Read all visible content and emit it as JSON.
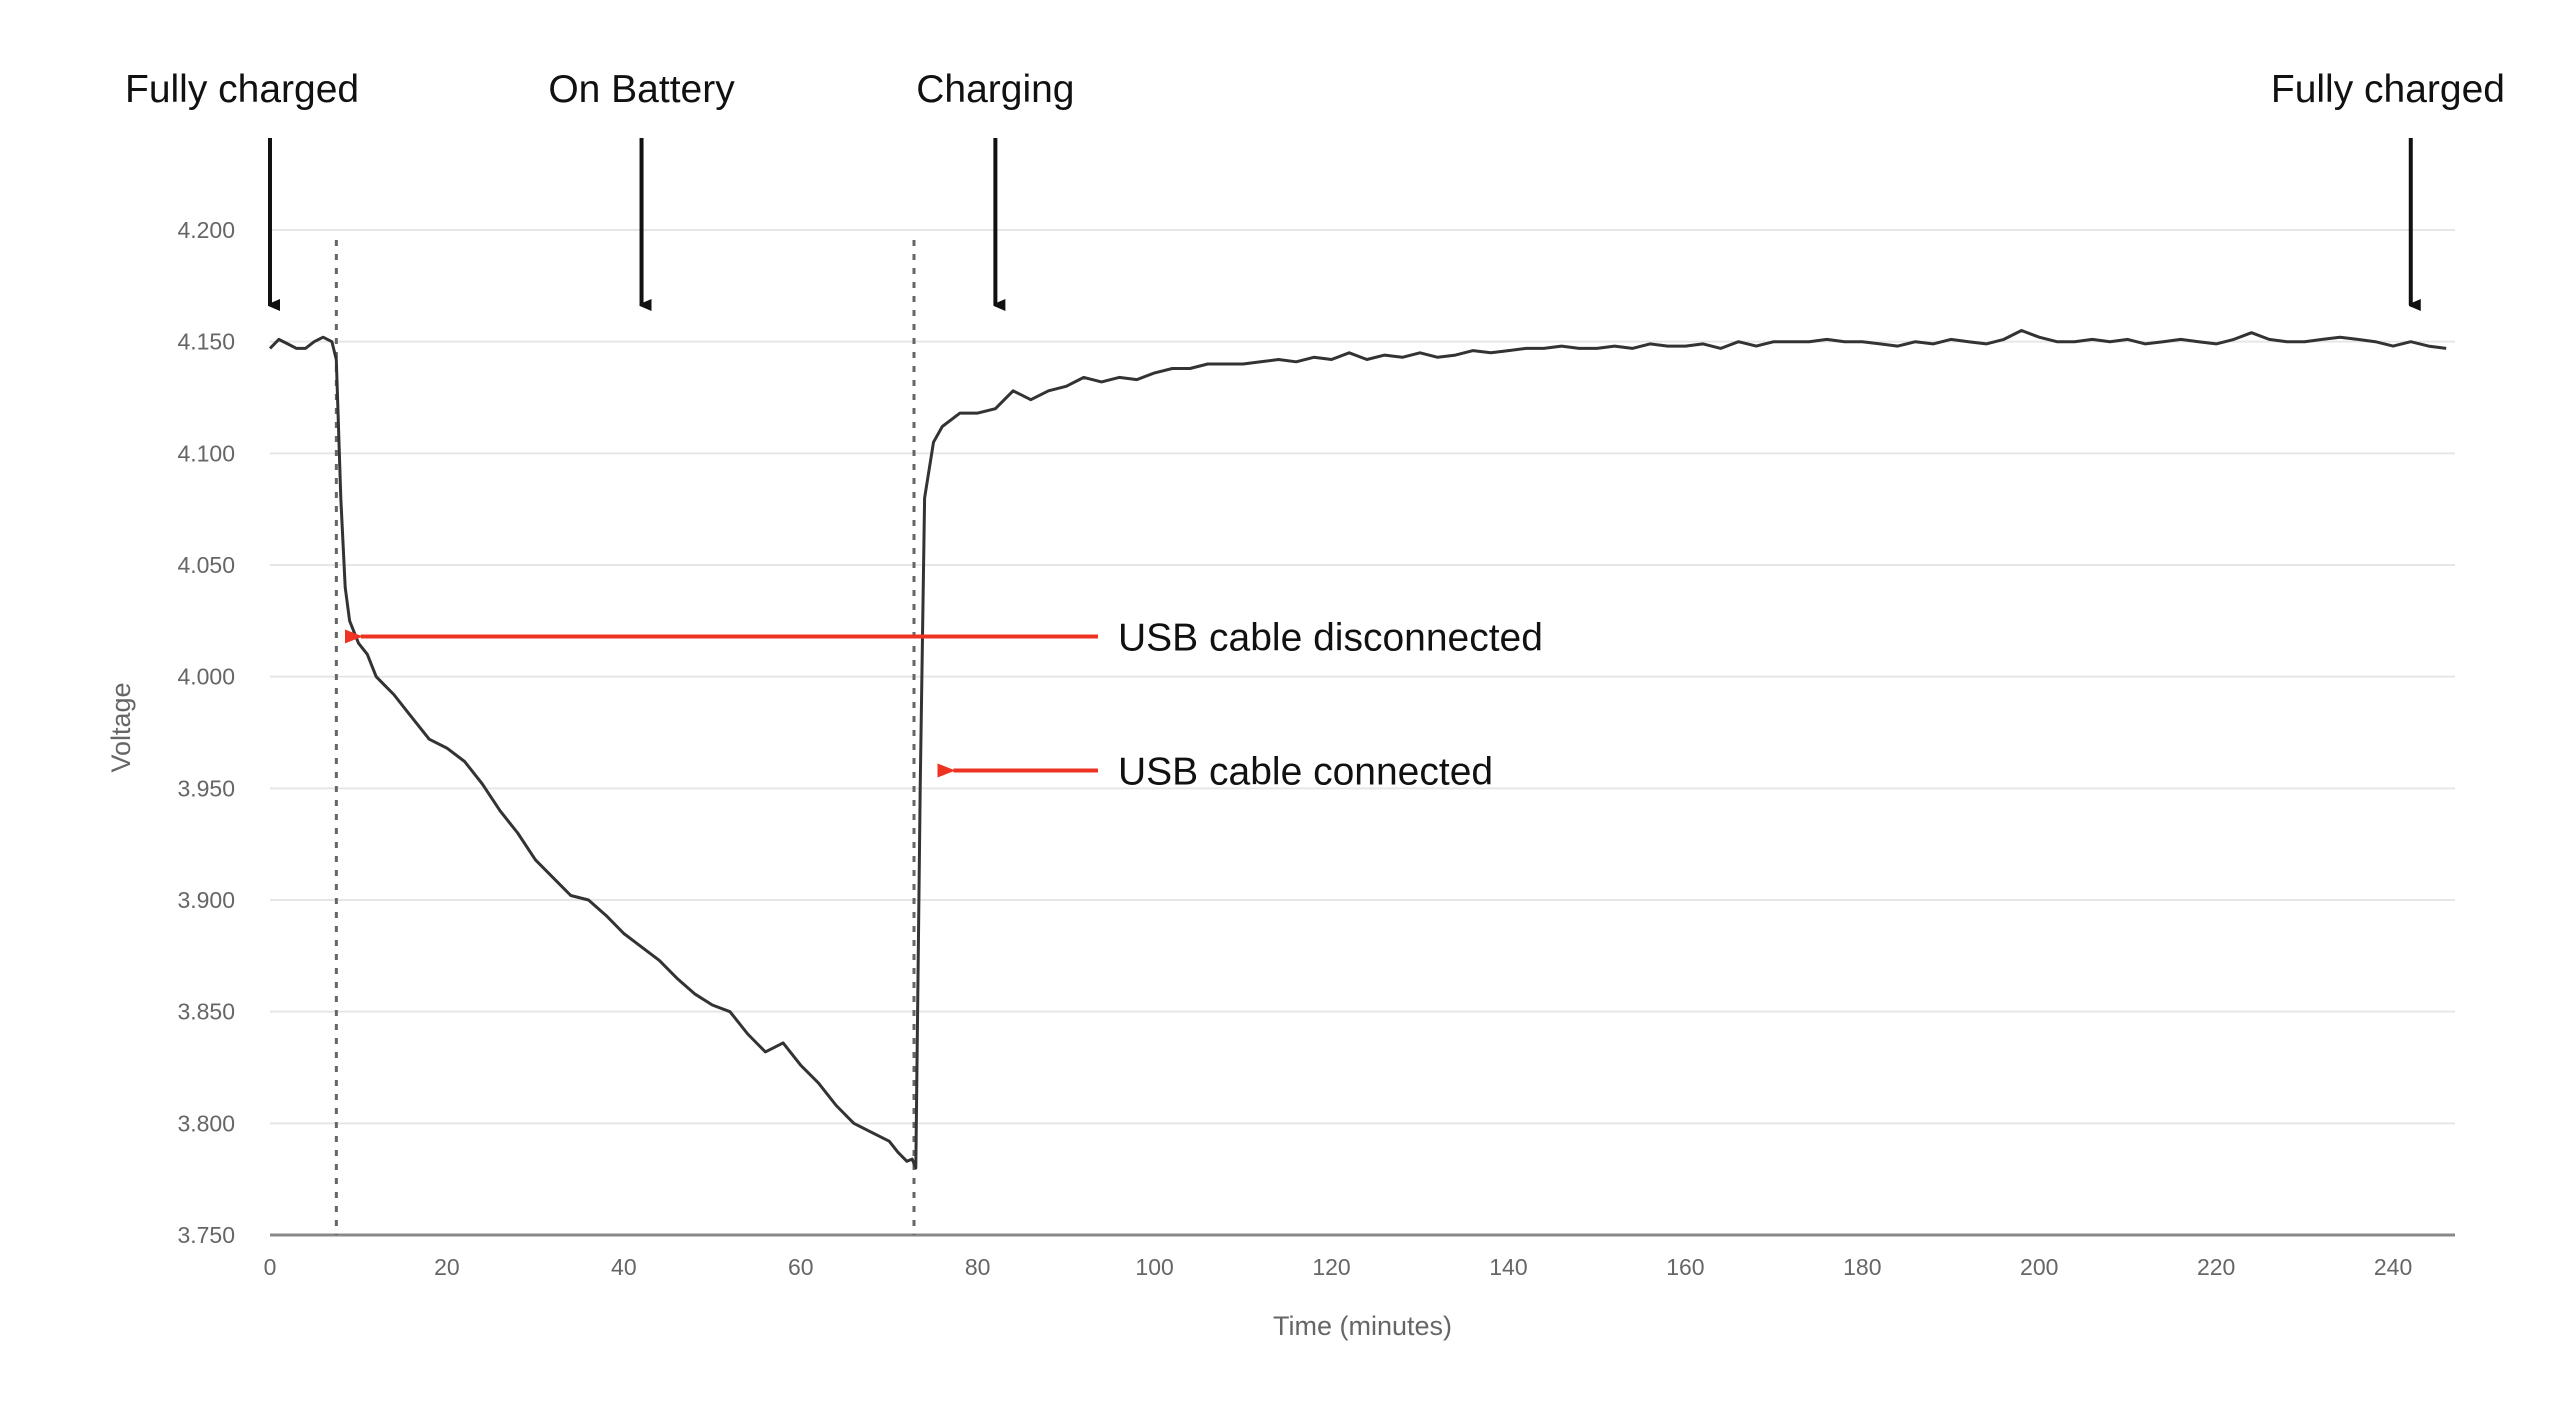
{
  "chart_data": {
    "type": "line",
    "title": "",
    "xlabel": "Time (minutes)",
    "ylabel": "Voltage",
    "xlim": [
      0,
      247
    ],
    "ylim": [
      3.75,
      4.2
    ],
    "x_ticks": [
      0,
      20,
      40,
      60,
      80,
      100,
      120,
      140,
      160,
      180,
      200,
      220,
      240
    ],
    "x_tick_labels": [
      "0",
      "20",
      "40",
      "60",
      "80",
      "100",
      "120",
      "140",
      "160",
      "180",
      "200",
      "220",
      "240"
    ],
    "y_ticks": [
      3.75,
      3.8,
      3.85,
      3.9,
      3.95,
      4.0,
      4.05,
      4.1,
      4.15,
      4.2
    ],
    "y_tick_labels": [
      "3.750",
      "3.800",
      "3.850",
      "3.900",
      "3.950",
      "4.000",
      "4.050",
      "4.100",
      "4.150",
      "4.200"
    ],
    "grid": "horizontal",
    "colors": {
      "series": "#333333",
      "callout_arrow": "#ee3322",
      "grid": "#e6e6e6"
    },
    "series": [
      {
        "x": [
          0,
          1,
          2,
          3,
          4,
          5,
          6,
          7,
          7.5,
          8,
          8.5,
          9,
          10,
          11,
          12,
          14,
          16,
          18,
          20,
          22,
          24,
          26,
          28,
          30,
          32,
          34,
          36,
          38,
          40,
          42,
          44,
          46,
          48,
          50,
          52,
          54,
          56,
          58,
          60,
          62,
          64,
          66,
          68,
          70,
          71,
          72,
          72.6,
          73,
          73.5,
          74,
          75,
          76,
          78,
          80,
          82,
          84,
          86,
          88,
          90,
          92,
          94,
          96,
          98,
          100,
          102,
          104,
          106,
          108,
          110,
          112,
          114,
          116,
          118,
          120,
          122,
          124,
          126,
          128,
          130,
          132,
          134,
          136,
          138,
          140,
          142,
          144,
          146,
          148,
          150,
          152,
          154,
          156,
          158,
          160,
          162,
          164,
          166,
          168,
          170,
          172,
          174,
          176,
          178,
          180,
          182,
          184,
          186,
          188,
          190,
          192,
          194,
          196,
          198,
          200,
          202,
          204,
          206,
          208,
          210,
          212,
          214,
          216,
          218,
          220,
          222,
          224,
          226,
          228,
          230,
          232,
          234,
          236,
          238,
          240,
          242,
          244,
          246
        ],
        "values": [
          4.147,
          4.151,
          4.149,
          4.147,
          4.147,
          4.15,
          4.152,
          4.15,
          4.142,
          4.08,
          4.04,
          4.025,
          4.015,
          4.01,
          4.0,
          3.992,
          3.982,
          3.972,
          3.968,
          3.962,
          3.952,
          3.94,
          3.93,
          3.918,
          3.91,
          3.902,
          3.9,
          3.893,
          3.885,
          3.879,
          3.873,
          3.865,
          3.858,
          3.853,
          3.85,
          3.84,
          3.832,
          3.836,
          3.826,
          3.818,
          3.808,
          3.8,
          3.796,
          3.792,
          3.787,
          3.783,
          3.784,
          3.78,
          3.95,
          4.08,
          4.105,
          4.112,
          4.118,
          4.118,
          4.12,
          4.128,
          4.124,
          4.128,
          4.13,
          4.134,
          4.132,
          4.134,
          4.133,
          4.136,
          4.138,
          4.138,
          4.14,
          4.14,
          4.14,
          4.141,
          4.142,
          4.141,
          4.143,
          4.142,
          4.145,
          4.142,
          4.144,
          4.143,
          4.145,
          4.143,
          4.144,
          4.146,
          4.145,
          4.146,
          4.147,
          4.147,
          4.148,
          4.147,
          4.147,
          4.148,
          4.147,
          4.149,
          4.148,
          4.148,
          4.149,
          4.147,
          4.15,
          4.148,
          4.15,
          4.15,
          4.15,
          4.151,
          4.15,
          4.15,
          4.149,
          4.148,
          4.15,
          4.149,
          4.151,
          4.15,
          4.149,
          4.151,
          4.155,
          4.152,
          4.15,
          4.15,
          4.151,
          4.15,
          4.151,
          4.149,
          4.15,
          4.151,
          4.15,
          4.149,
          4.151,
          4.154,
          4.151,
          4.15,
          4.15,
          4.151,
          4.152,
          4.151,
          4.15,
          4.148,
          4.15,
          4.148,
          4.147
        ]
      }
    ],
    "event_lines": [
      {
        "name": "unplugged",
        "x": 7.5
      },
      {
        "name": "plugged",
        "x": 72.8
      }
    ],
    "phase_annotations": [
      {
        "label": "Fully charged",
        "x": 0
      },
      {
        "label": "On Battery",
        "x": 42
      },
      {
        "label": "Charging",
        "x": 82
      },
      {
        "label": "Fully charged",
        "x": 242
      }
    ],
    "callouts": [
      {
        "label": "USB cable disconnected",
        "x": 8,
        "y": 4.018
      },
      {
        "label": "USB cable connected",
        "x": 75,
        "y": 3.958
      }
    ]
  }
}
